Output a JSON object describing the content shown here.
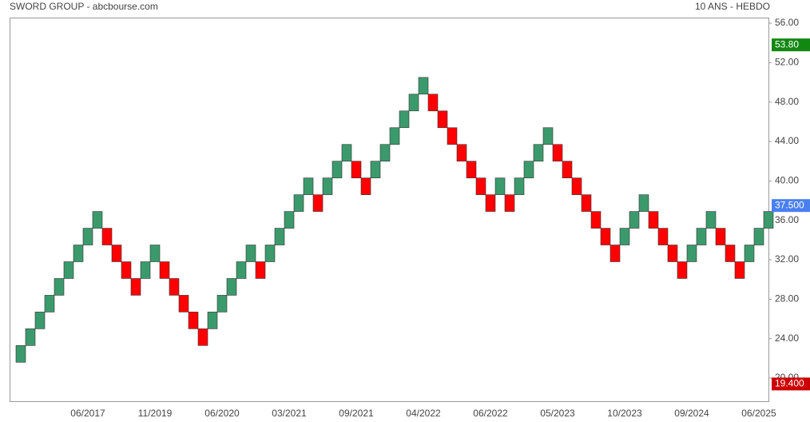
{
  "chart_data": {
    "type": "renko",
    "title": "SWORD GROUP - abcbourse.com",
    "subtitle": "10 ANS - HEBDO",
    "brick_size": 1.7,
    "up_color": "#3b9a6c",
    "down_color": "#ff0000",
    "values": [
      23.3,
      25,
      26.7,
      28.4,
      30.1,
      31.8,
      33.5,
      35.2,
      36.9,
      33.5,
      31.8,
      30.1,
      28.4,
      31.8,
      33.5,
      30.1,
      28.4,
      26.7,
      25,
      23.3,
      26.7,
      28.4,
      30.1,
      31.8,
      33.5,
      30.1,
      33.5,
      35.2,
      36.9,
      38.6,
      40.3,
      36.9,
      40.3,
      42,
      43.7,
      40.3,
      38.6,
      42,
      43.7,
      45.4,
      47.1,
      48.8,
      50.5,
      47.1,
      45.4,
      43.7,
      42,
      40.3,
      38.6,
      36.9,
      40.3,
      36.9,
      40.3,
      42,
      43.7,
      45.4,
      42,
      40.3,
      38.6,
      36.9,
      35.2,
      33.5,
      31.8,
      35.2,
      36.9,
      38.6,
      35.2,
      33.5,
      31.8,
      30.1,
      33.5,
      35.2,
      36.9,
      33.5,
      31.8,
      30.1,
      33.5,
      35.2,
      36.9
    ],
    "categories": [
      null,
      null,
      null,
      null,
      null,
      null,
      null,
      "06/2017",
      null,
      null,
      null,
      null,
      null,
      null,
      "11/2019",
      null,
      null,
      null,
      null,
      null,
      null,
      "06/2020",
      null,
      null,
      null,
      null,
      null,
      null,
      "03/2021",
      null,
      null,
      null,
      null,
      null,
      null,
      "09/2021",
      null,
      null,
      null,
      null,
      null,
      null,
      "04/2022",
      null,
      null,
      null,
      null,
      null,
      null,
      "06/2022",
      null,
      null,
      null,
      null,
      null,
      null,
      "05/2023",
      null,
      null,
      null,
      null,
      null,
      null,
      "10/2023",
      null,
      null,
      null,
      null,
      null,
      null,
      "09/2024",
      null,
      null,
      null,
      null,
      null,
      null,
      "06/2025",
      null
    ],
    "ylim": [
      17.65,
      56.57
    ],
    "yticks": [
      {
        "value": 20,
        "label": "20.00"
      },
      {
        "value": 24,
        "label": "24.00"
      },
      {
        "value": 28,
        "label": "28.00"
      },
      {
        "value": 32,
        "label": "32.00"
      },
      {
        "value": 36,
        "label": "36.00"
      },
      {
        "value": 40,
        "label": "40.00"
      },
      {
        "value": 44,
        "label": "44.00"
      },
      {
        "value": 48,
        "label": "48.00"
      },
      {
        "value": 52,
        "label": "52.00"
      },
      {
        "value": 56,
        "label": "56.00"
      }
    ],
    "markers": [
      {
        "value": 53.8,
        "label": "53.80",
        "color": "#118811"
      },
      {
        "value": 37.5,
        "label": "37.500",
        "color": "#4a7ff0"
      },
      {
        "value": 19.4,
        "label": "19.400",
        "color": "#cc0000"
      }
    ]
  }
}
